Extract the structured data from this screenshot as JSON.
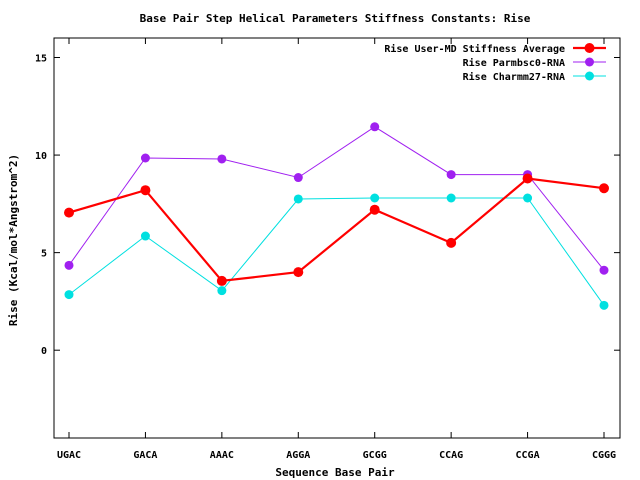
{
  "chart_data": {
    "type": "line",
    "title": "Base Pair Step Helical Parameters Stiffness Constants: Rise",
    "xlabel": "Sequence Base Pair",
    "ylabel": "Rise (Kcal/mol*Angstrom^2)",
    "categories": [
      "UGAC",
      "GACA",
      "AAAC",
      "AGGA",
      "GCGG",
      "CCAG",
      "CCGA",
      "CGGG"
    ],
    "ylim": [
      -4.5,
      16
    ],
    "yticks": [
      0,
      5,
      10,
      15
    ],
    "grid": false,
    "legend_position": "top-right",
    "series": [
      {
        "name": "Rise User-MD Stiffness Average",
        "color": "#ff0000",
        "values": [
          7.05,
          8.2,
          3.55,
          4.0,
          7.2,
          5.5,
          8.8,
          8.3
        ]
      },
      {
        "name": "Rise Parmbsc0-RNA",
        "color": "#a020f0",
        "values": [
          4.35,
          9.85,
          9.8,
          8.85,
          11.45,
          9.0,
          9.0,
          4.1
        ]
      },
      {
        "name": "Rise Charmm27-RNA",
        "color": "#00e0e0",
        "values": [
          2.85,
          5.85,
          3.05,
          7.75,
          7.8,
          7.8,
          7.8,
          2.3
        ]
      }
    ]
  }
}
